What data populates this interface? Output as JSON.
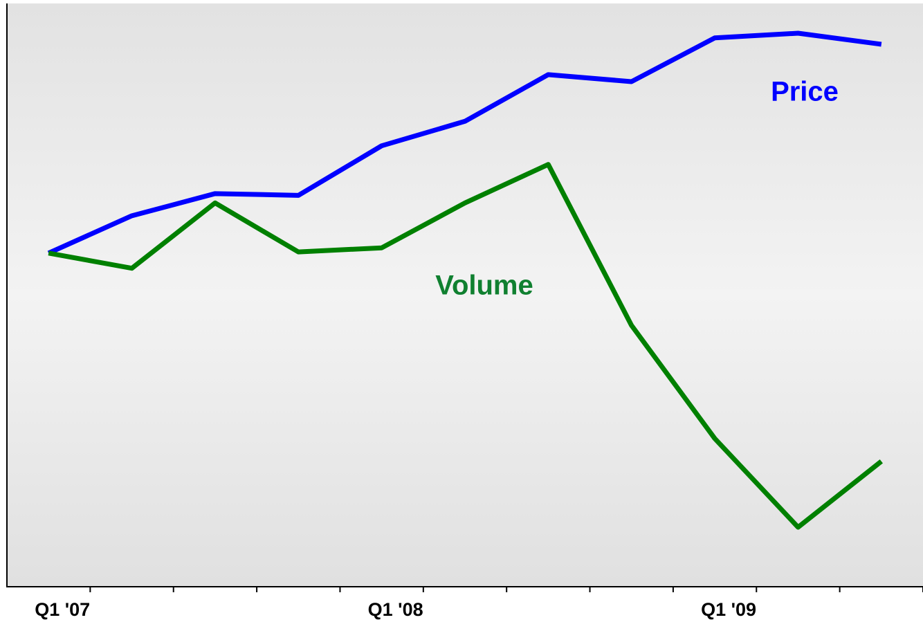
{
  "chart_data": {
    "type": "line",
    "categories": [
      "Q1 '07",
      null,
      null,
      null,
      "Q1 '08",
      null,
      null,
      null,
      "Q1 '09",
      null,
      null
    ],
    "series": [
      {
        "name": "Price",
        "color": "#0000ff",
        "values": [
          57.2,
          63.6,
          67.4,
          67.1,
          75.6,
          79.8,
          87.8,
          86.6,
          94.1,
          94.9,
          93.0
        ]
      },
      {
        "name": "Volume",
        "color": "#008000",
        "values": [
          57.2,
          54.6,
          65.8,
          57.4,
          58.1,
          65.8,
          72.4,
          44.8,
          25.4,
          10.2,
          21.5
        ]
      }
    ],
    "ylim": [
      0,
      100
    ]
  }
}
